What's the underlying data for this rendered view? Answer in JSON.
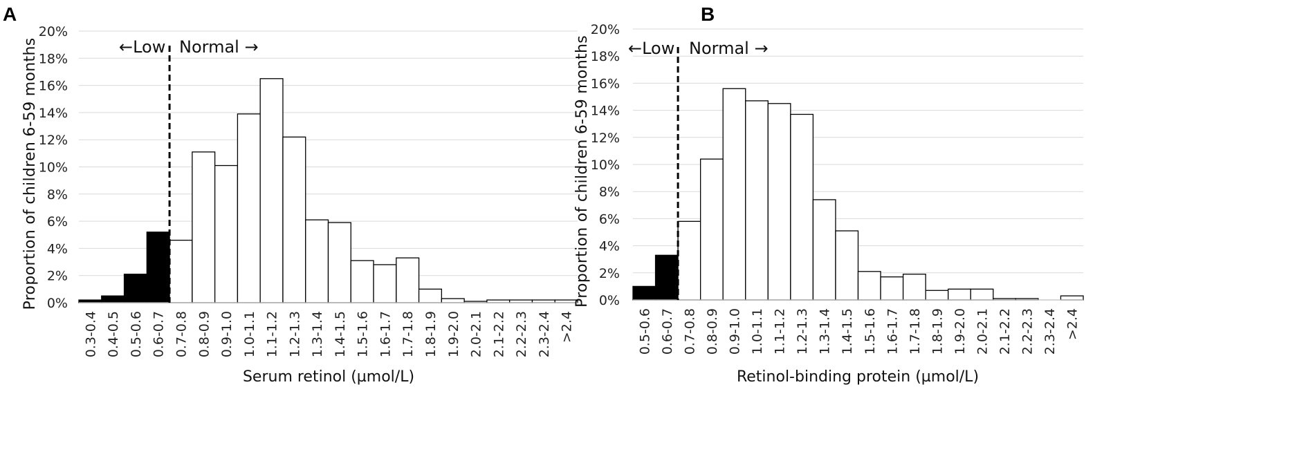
{
  "chart_data": [
    {
      "panel": "A",
      "type": "bar",
      "xlabel": "Serum retinol (µmol/L)",
      "ylabel": "Proportion of children 6-59 months",
      "ylim": [
        0,
        20
      ],
      "yticks": [
        "0%",
        "2%",
        "4%",
        "6%",
        "8%",
        "10%",
        "12%",
        "14%",
        "16%",
        "18%",
        "20%"
      ],
      "categories": [
        "0.3-0.4",
        "0.4-0.5",
        "0.5-0.6",
        "0.6-0.7",
        "0.7-0.8",
        "0.8-0.9",
        "0.9-1.0",
        "1.0-1.1",
        "1.1-1.2",
        "1.2-1.3",
        "1.3-1.4",
        "1.4-1.5",
        "1.5-1.6",
        "1.6-1.7",
        "1.7-1.8",
        "1.8-1.9",
        "1.9-2.0",
        "2.0-2.1",
        "2.1-2.2",
        "2.2-2.3",
        "2.3-2.4",
        ">2.4"
      ],
      "values": [
        0.2,
        0.5,
        2.1,
        5.2,
        4.6,
        11.1,
        10.1,
        13.9,
        16.5,
        12.2,
        6.1,
        5.9,
        3.1,
        2.8,
        3.3,
        1.0,
        0.3,
        0.1,
        0.2,
        0.2,
        0.2,
        0.2
      ],
      "low_count": 4,
      "annotations": {
        "low": "←Low",
        "normal": "Normal →"
      },
      "colors": {
        "low": "#000000",
        "normal": "#ffffff"
      }
    },
    {
      "panel": "B",
      "type": "bar",
      "xlabel": "Retinol-binding protein (µmol/L)",
      "ylabel": "Proportion of children 6-59 months",
      "ylim": [
        0,
        20
      ],
      "yticks": [
        "0%",
        "2%",
        "4%",
        "6%",
        "8%",
        "10%",
        "12%",
        "14%",
        "16%",
        "18%",
        "20%"
      ],
      "categories": [
        "0.5-0.6",
        "0.6-0.7",
        "0.7-0.8",
        "0.8-0.9",
        "0.9-1.0",
        "1.0-1.1",
        "1.1-1.2",
        "1.2-1.3",
        "1.3-1.4",
        "1.4-1.5",
        "1.5-1.6",
        "1.6-1.7",
        "1.7-1.8",
        "1.8-1.9",
        "1.9-2.0",
        "2.0-2.1",
        "2.1-2.2",
        "2.2-2.3",
        "2.3-2.4",
        ">2.4"
      ],
      "values": [
        1.0,
        3.3,
        5.8,
        10.4,
        15.6,
        14.7,
        14.5,
        13.7,
        7.4,
        5.1,
        2.1,
        1.7,
        1.9,
        0.7,
        0.8,
        0.8,
        0.1,
        0.1,
        0.0,
        0.3
      ],
      "low_count": 2,
      "annotations": {
        "low": "←Low",
        "normal": "Normal →"
      },
      "colors": {
        "low": "#000000",
        "normal": "#ffffff"
      }
    }
  ]
}
